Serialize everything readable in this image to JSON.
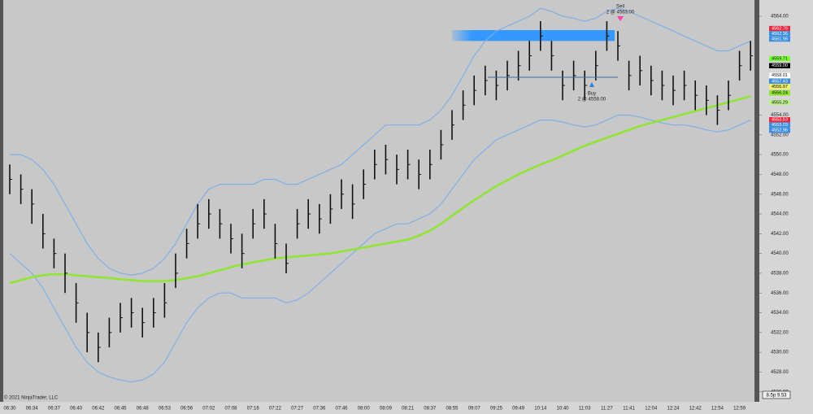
{
  "chart_data": {
    "type": "ohlc",
    "categories": [
      "06:30",
      null,
      "06:34",
      null,
      "06:37",
      null,
      "06:40",
      null,
      "06:42",
      null,
      "06:45",
      null,
      "06:48",
      null,
      "06:53",
      null,
      "06:56",
      null,
      "07:02",
      null,
      "07:08",
      null,
      "07:16",
      null,
      "07:22",
      null,
      "07:27",
      null,
      "07:36",
      null,
      "07:46",
      null,
      "08:00",
      null,
      "08:09",
      null,
      "08:21",
      null,
      "08:37",
      null,
      "08:55",
      null,
      "09:07",
      null,
      "09:25",
      null,
      "09:49",
      null,
      "10:14",
      null,
      "10:40",
      null,
      "11:03",
      null,
      "11:27",
      null,
      "11:41",
      null,
      "12:04",
      null,
      "12:24",
      null,
      "12:42",
      null,
      "12:54",
      null,
      "12:59",
      null
    ],
    "high": [
      4549,
      4548,
      4546.5,
      4544,
      4541.5,
      4540,
      4537,
      4534,
      4532,
      4533.5,
      4535,
      4535.5,
      4534.5,
      4535.5,
      4537,
      4540,
      4542.5,
      4545,
      4545.5,
      4544.5,
      4543,
      4542,
      4544.5,
      4545.5,
      4543,
      4541,
      4544.5,
      4545.5,
      4545,
      4546,
      4547.5,
      4547,
      4548.5,
      4550.5,
      4551,
      4550,
      4550.5,
      4549.5,
      4550.5,
      4552.5,
      4554.5,
      4556.5,
      4558,
      4559,
      4558.5,
      4559.5,
      4560.5,
      4561.5,
      4563.5,
      4561.5,
      4558.5,
      4559.5,
      4558.5,
      4560.5,
      4563.5,
      4562.5,
      4559.5,
      4560,
      4559,
      4558.5,
      4558,
      4558.5,
      4557.5,
      4557,
      4556,
      4557.5,
      4560.5,
      4561.5
    ],
    "low": [
      4546,
      4545,
      4543,
      4540.5,
      4538.5,
      4536,
      4533,
      4530,
      4529,
      4530.5,
      4532,
      4532.5,
      4531.5,
      4532.5,
      4533.5,
      4536.5,
      4539.5,
      4541.5,
      4542.5,
      4541.5,
      4540,
      4538.5,
      4541.5,
      4542.5,
      4539.5,
      4538,
      4541.5,
      4542.5,
      4542,
      4543,
      4544.5,
      4543.5,
      4545.5,
      4547.5,
      4548,
      4547,
      4547.5,
      4546.5,
      4547.5,
      4549.5,
      4551.5,
      4553.5,
      4555,
      4556,
      4555.5,
      4556.5,
      4557.5,
      4558.5,
      4560.5,
      4558.5,
      4555.5,
      4556.5,
      4555.5,
      4557.5,
      4560.5,
      4559.5,
      4556.5,
      4557,
      4556,
      4555.5,
      4555,
      4555.5,
      4554.5,
      4554,
      4553,
      4554.5,
      4557.5,
      4558.5
    ],
    "close": [
      4547.5,
      4546.5,
      4545,
      4542,
      4540,
      4538,
      4535,
      4532,
      4530.5,
      4532,
      4533.5,
      4534,
      4533,
      4534,
      4535,
      4538,
      4541,
      4543,
      4544,
      4543,
      4541.5,
      4540,
      4543,
      4544,
      4541,
      4539,
      4543,
      4544,
      4543.5,
      4544.5,
      4546,
      4545,
      4547,
      4549,
      4549.5,
      4548.5,
      4549,
      4548,
      4549,
      4551,
      4553,
      4555,
      4556.5,
      4557.5,
      4557,
      4558,
      4559,
      4560,
      4562,
      4560,
      4557,
      4558,
      4557,
      4559,
      4562,
      4561,
      4558,
      4558.5,
      4557.5,
      4557,
      4556.5,
      4557,
      4556,
      4555.5,
      4554.5,
      4556,
      4559,
      4560
    ],
    "bar_color": "#111111",
    "overlays": [
      {
        "color": "#7fb0e8",
        "values": [
          4550,
          4550,
          4549.5,
          4548.5,
          4547,
          4545,
          4543,
          4541,
          4539.5,
          4538.5,
          4538,
          4537.8,
          4538,
          4538.5,
          4539.5,
          4541,
          4543,
          4545,
          4546.5,
          4547,
          4547,
          4547,
          4547,
          4547.5,
          4547.5,
          4547,
          4547,
          4547.5,
          4548,
          4548.5,
          4549,
          4550,
          4551,
          4552,
          4553,
          4553,
          4553,
          4553,
          4553.5,
          4554.5,
          4556,
          4558,
          4560,
          4561.5,
          4562.5,
          4563,
          4563.5,
          4564,
          4564.8,
          4564.5,
          4564,
          4563.8,
          4563.5,
          4563.8,
          4564.5,
          4564.8,
          4564.5,
          4564,
          4563.5,
          4563,
          4562.5,
          4562,
          4561.5,
          4561,
          4560.5,
          4560.5,
          4561,
          4561.5
        ]
      },
      {
        "color": "#7fb0e8",
        "values": [
          4540,
          4539,
          4538,
          4536.5,
          4534.5,
          4532.5,
          4530.5,
          4529,
          4528,
          4527.5,
          4527.2,
          4527,
          4527.2,
          4527.8,
          4529,
          4531,
          4533,
          4534.5,
          4535.5,
          4536,
          4536,
          4535.5,
          4535.5,
          4535.5,
          4535.5,
          4535,
          4535.3,
          4536,
          4537,
          4538,
          4539,
          4540,
          4541,
          4542,
          4542.5,
          4543,
          4543,
          4543.5,
          4544,
          4545,
          4546.5,
          4548,
          4549.5,
          4550.5,
          4551.5,
          4552,
          4552.5,
          4553,
          4553.5,
          4553.5,
          4553.3,
          4553,
          4552.8,
          4553,
          4553.5,
          4554,
          4554,
          4553.8,
          4553.5,
          4553.2,
          4553,
          4553,
          4552.8,
          4552.5,
          4552.3,
          4552.5,
          4553,
          4553.5
        ]
      },
      {
        "color": "#8ee62e",
        "values": [
          4537,
          4537.3,
          4537.6,
          4537.8,
          4537.9,
          4537.9,
          4537.8,
          4537.7,
          4537.6,
          4537.5,
          4537.4,
          4537.3,
          4537.2,
          4537.2,
          4537.2,
          4537.3,
          4537.5,
          4537.7,
          4538,
          4538.3,
          4538.6,
          4538.9,
          4539.1,
          4539.3,
          4539.5,
          4539.6,
          4539.7,
          4539.8,
          4539.9,
          4540,
          4540.2,
          4540.4,
          4540.6,
          4540.8,
          4541,
          4541.2,
          4541.4,
          4541.8,
          4542.3,
          4543,
          4543.8,
          4544.6,
          4545.4,
          4546.1,
          4546.8,
          4547.4,
          4548,
          4548.5,
          4549,
          4549.4,
          4549.9,
          4550.4,
          4550.9,
          4551.3,
          4551.7,
          4552.1,
          4552.5,
          4552.9,
          4553.2,
          4553.5,
          4553.8,
          4554.1,
          4554.4,
          4554.7,
          4555,
          4555.3,
          4555.6,
          4555.9
        ]
      }
    ],
    "zone": {
      "high": 4562.6,
      "low": 4561.5,
      "color": "#3399ff"
    },
    "ylim": [
      4525,
      4565.2
    ],
    "yticks": [
      {
        "value": 4526,
        "label": "4526.00"
      },
      {
        "value": 4528,
        "label": "4528.00"
      },
      {
        "value": 4530,
        "label": "4530.00"
      },
      {
        "value": 4532,
        "label": "4532.00"
      },
      {
        "value": 4534,
        "label": "4534.00"
      },
      {
        "value": 4536,
        "label": "4536.00"
      },
      {
        "value": 4538,
        "label": "4538.00"
      },
      {
        "value": 4540,
        "label": "4540.00"
      },
      {
        "value": 4542,
        "label": "4542.00"
      },
      {
        "value": 4544,
        "label": "4544.00"
      },
      {
        "value": 4546,
        "label": "4546.00"
      },
      {
        "value": 4548,
        "label": "4548.00"
      },
      {
        "value": 4550,
        "label": "4550.00"
      },
      {
        "value": 4552,
        "label": "4552.00"
      },
      {
        "value": 4554,
        "label": "4554.00"
      },
      {
        "value": 4564,
        "label": "4564.00"
      }
    ],
    "price_badges": [
      {
        "value": 4562.76,
        "label": "4562.76",
        "color": "#e8283c"
      },
      {
        "value": 4562.36,
        "label": "4562.36",
        "color": "#3b8de0"
      },
      {
        "value": 4561.96,
        "label": "4561.96",
        "color": "#3b8de0"
      },
      {
        "value": 4559.71,
        "label": "4559.71",
        "color": "#7cfc3a"
      },
      {
        "value": 4559.0,
        "label": "4559.00",
        "color": "#000000"
      },
      {
        "value": 4558.01,
        "label": "4558.01",
        "color": "#ffffff"
      },
      {
        "value": 4557.43,
        "label": "4557.43",
        "color": "#3b8de0"
      },
      {
        "value": 4556.97,
        "label": "4556.97",
        "color": "#f0f060"
      },
      {
        "value": 4556.24,
        "label": "4556.24",
        "color": "#8ee62e"
      },
      {
        "value": 4555.29,
        "label": "4555.29",
        "color": "#b8f08a"
      },
      {
        "value": 4553.53,
        "label": "4553.53",
        "color": "#e8283c"
      },
      {
        "value": 4553.03,
        "label": "4553.03",
        "color": "#3b8de0"
      },
      {
        "value": 4552.96,
        "label": "4552.96",
        "color": "#3b8de0"
      }
    ],
    "sell_label": "Sell",
    "sell_detail": "2 @ 4563.00",
    "buy_label": "Buy",
    "buy_detail": "2 @ 4558.00",
    "copyright": "© 2021 NinjaTrader, LLC",
    "status_box": "8.5p 9.53"
  }
}
